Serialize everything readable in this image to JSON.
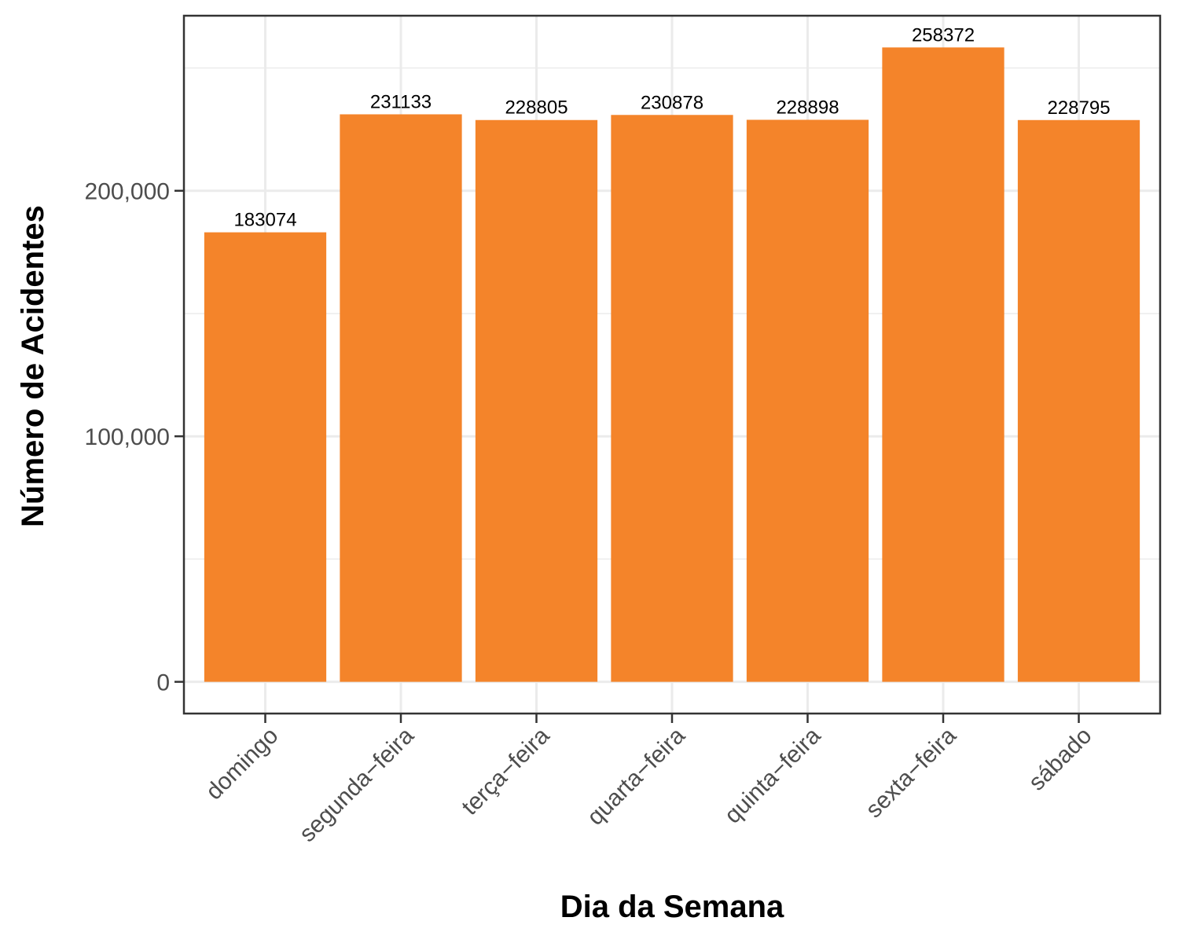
{
  "chart_data": {
    "type": "bar",
    "title": "",
    "xlabel": "Dia da Semana",
    "ylabel": "Número de Acidentes",
    "categories": [
      "domingo",
      "segunda−feira",
      "terça−feira",
      "quarta−feira",
      "quinta−feira",
      "sexta−feira",
      "sábado"
    ],
    "values": [
      183074,
      231133,
      228805,
      230878,
      228898,
      258372,
      228795
    ],
    "value_labels": [
      "183074",
      "231133",
      "228805",
      "230878",
      "228898",
      "258372",
      "228795"
    ],
    "yticks": [
      0,
      100000,
      200000
    ],
    "ytick_labels": [
      "0",
      "100,000",
      "200,000"
    ],
    "ylim": [
      -12918.6,
      271290.6
    ],
    "grid": true,
    "legend": "none",
    "bar_color": "#F4842A",
    "grid_color": "#EBEBEB",
    "panel_border_color": "#333333"
  }
}
